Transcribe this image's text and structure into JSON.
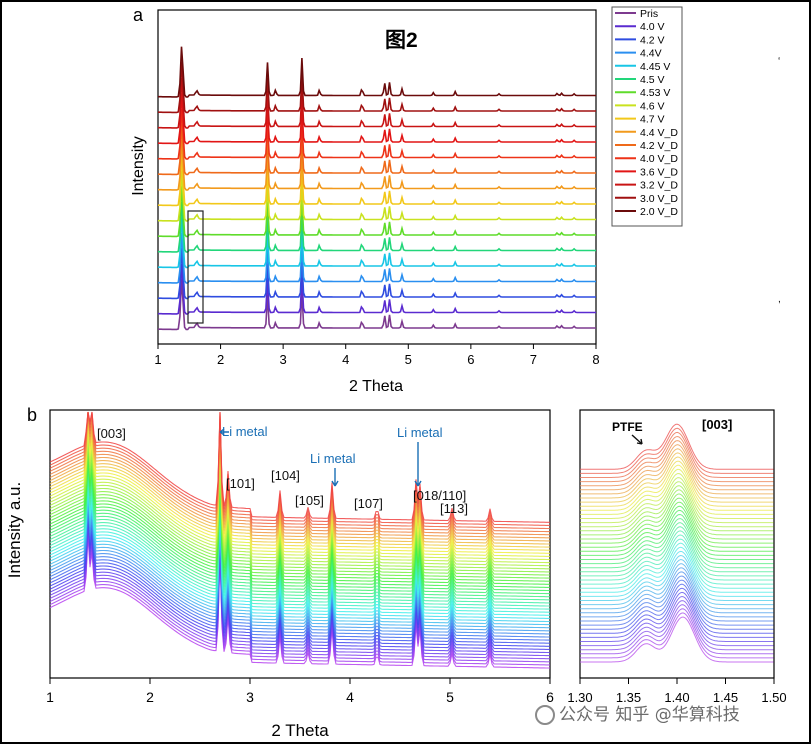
{
  "chart_data": [
    {
      "type": "line",
      "panel_label": "a",
      "title": "图2",
      "xlabel": "2 Theta",
      "ylabel": "Intensity",
      "xlim": [
        1,
        8
      ],
      "xticks": [
        "1",
        "2",
        "3",
        "4",
        "5",
        "6",
        "7",
        "8"
      ],
      "legend_position": "right",
      "series": [
        {
          "name": "Pris",
          "color": "#7d3a8f"
        },
        {
          "name": "4.0 V",
          "color": "#5a2bd0"
        },
        {
          "name": "4.2 V",
          "color": "#2f4ce0"
        },
        {
          "name": "4.4V",
          "color": "#2a8ff0"
        },
        {
          "name": "4.45 V",
          "color": "#18c6e6"
        },
        {
          "name": "4.5 V",
          "color": "#22d67a"
        },
        {
          "name": "4.53 V",
          "color": "#5fdc2a"
        },
        {
          "name": "4.6 V",
          "color": "#c9e21f"
        },
        {
          "name": "4.7 V",
          "color": "#f2c81a"
        },
        {
          "name": "4.4 V_D",
          "color": "#f29a1c"
        },
        {
          "name": "4.2 V_D",
          "color": "#ef6a1a"
        },
        {
          "name": "4.0 V_D",
          "color": "#ee3318"
        },
        {
          "name": "3.6 V_D",
          "color": "#e21515"
        },
        {
          "name": "3.2 V_D",
          "color": "#c91414"
        },
        {
          "name": "3.0 V_D",
          "color": "#a01010"
        },
        {
          "name": "2.0 V_D",
          "color": "#6b0b0b"
        }
      ],
      "peak_positions_2theta": [
        1.38,
        1.62,
        2.75,
        2.88,
        3.3,
        3.58,
        4.26,
        4.62,
        4.7,
        4.9,
        5.4,
        5.75,
        6.45,
        7.38,
        7.45,
        7.65
      ]
    },
    {
      "type": "line",
      "panel_label": "b",
      "xlabel": "2 Theta",
      "ylabel": "Intensity a.u.",
      "xlim": [
        1,
        6
      ],
      "xticks": [
        "1",
        "2",
        "3",
        "4",
        "5",
        "6"
      ],
      "annotations": [
        {
          "text": "[003]",
          "x": 1.42
        },
        {
          "text": "Li metal",
          "x": 2.7,
          "color": "#1a6fb5"
        },
        {
          "text": "[101]",
          "x": 2.78
        },
        {
          "text": "[104]",
          "x": 3.3
        },
        {
          "text": "Li metal",
          "x": 3.82,
          "color": "#1a6fb5"
        },
        {
          "text": "[105]",
          "x": 3.62
        },
        {
          "text": "[107]",
          "x": 4.27
        },
        {
          "text": "Li metal",
          "x": 4.7,
          "color": "#1a6fb5"
        },
        {
          "text": "[018/110]",
          "x": 4.66
        },
        {
          "text": "[113]",
          "x": 5.02
        }
      ]
    },
    {
      "type": "line",
      "panel_label": "b-inset",
      "xlabel": "2 Theta",
      "xlim": [
        1.3,
        1.5
      ],
      "xticks": [
        "1.30",
        "1.35",
        "1.40",
        "1.45",
        "1.50"
      ],
      "annotations": [
        {
          "text": "PTFE",
          "x": 1.365
        },
        {
          "text": "[003]",
          "x": 1.41
        }
      ]
    }
  ],
  "watermark": "公众号 知乎 @华算科技"
}
